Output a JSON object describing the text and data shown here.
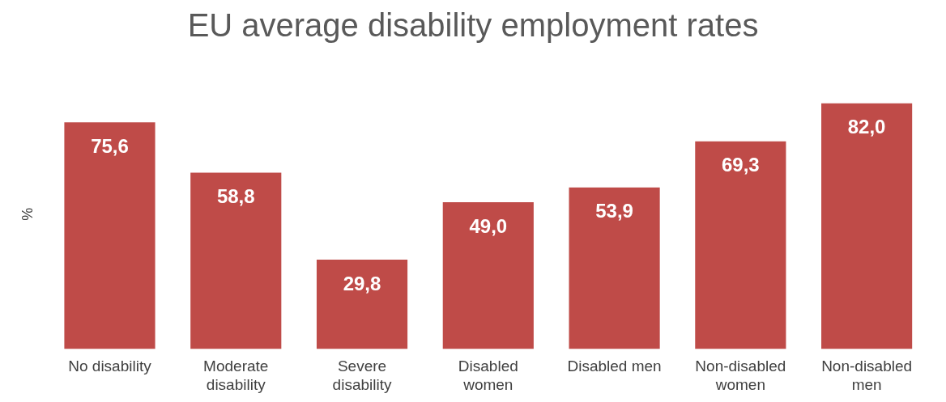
{
  "chart_data": {
    "type": "bar",
    "title": "EU average disability employment rates",
    "ylabel": "%",
    "categories": [
      "No disability",
      "Moderate disability",
      "Severe disability",
      "Disabled women",
      "Disabled men",
      "Non-disabled women",
      "Non-disabled men"
    ],
    "values": [
      75.6,
      58.8,
      29.8,
      49.0,
      53.9,
      69.3,
      82.0
    ],
    "value_labels": [
      "75,6",
      "58,8",
      "29,8",
      "49,0",
      "53,9",
      "69,3",
      "82,0"
    ],
    "color": "#bf4b48",
    "grid": false,
    "legend": false
  }
}
